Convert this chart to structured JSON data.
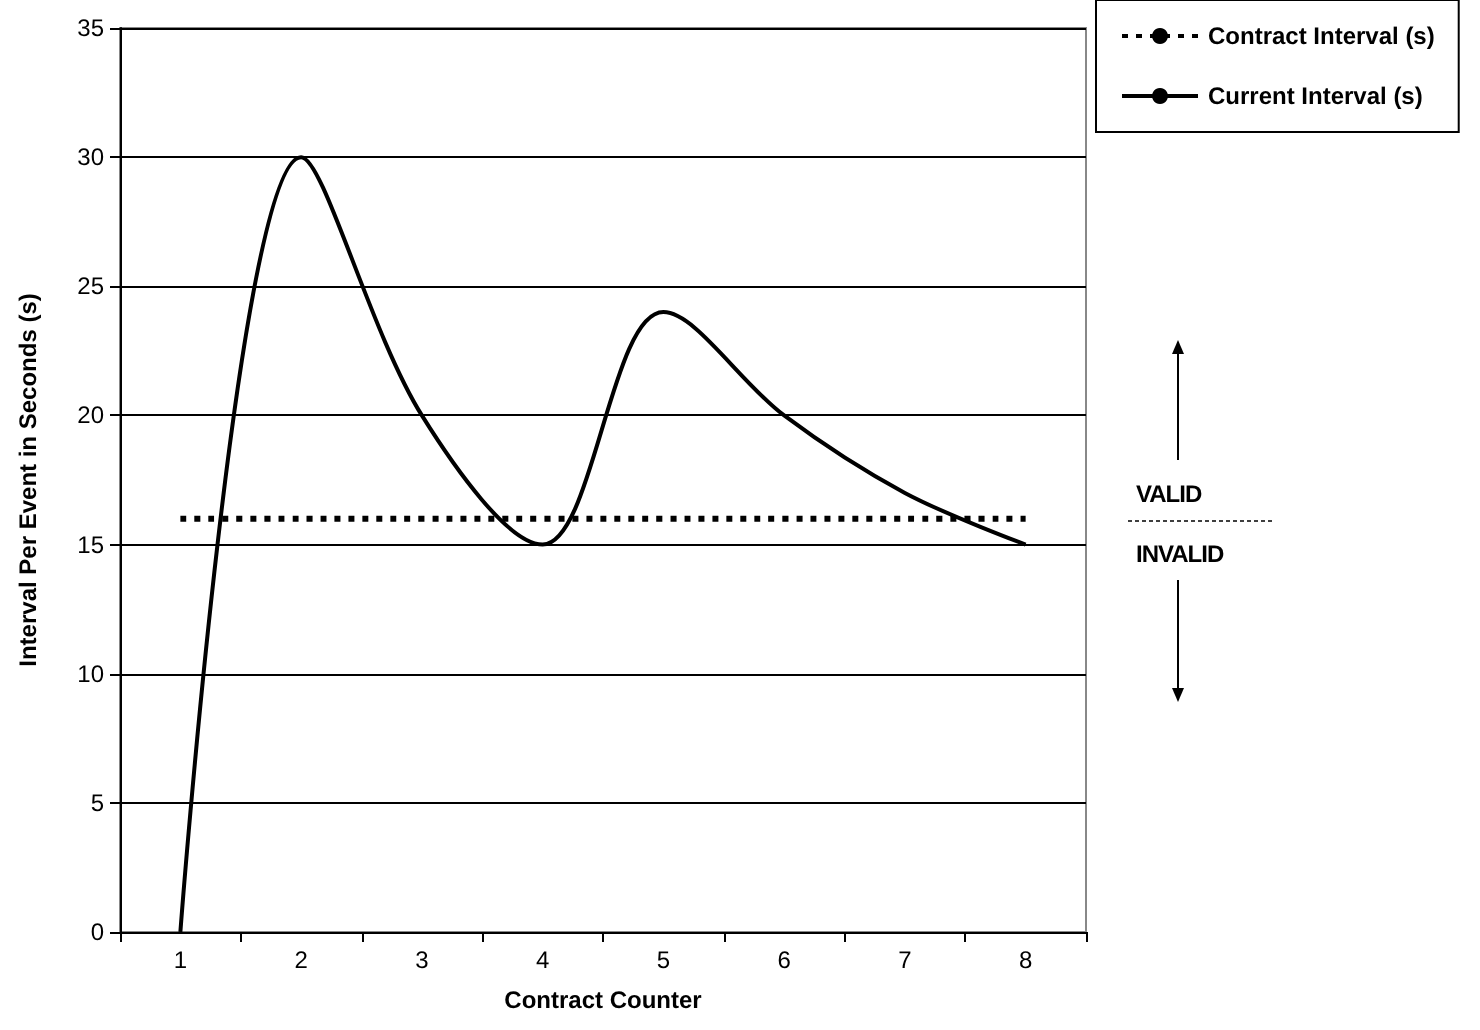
{
  "chart_data": {
    "type": "line",
    "xlabel": "Contract Counter",
    "ylabel": "Interval Per Event in Seconds (s)",
    "categories": [
      "1",
      "2",
      "3",
      "4",
      "5",
      "6",
      "7",
      "8"
    ],
    "series": [
      {
        "name": "Contract Interval (s)",
        "color": "#000000",
        "line_style": "dotted",
        "values": [
          16,
          16,
          16,
          16,
          16,
          16,
          16,
          16
        ]
      },
      {
        "name": "Current Interval (s)",
        "color": "#000000",
        "line_style": "solid",
        "values": [
          0,
          30,
          20,
          15,
          24,
          20,
          17,
          15
        ]
      }
    ],
    "ylim": [
      0,
      35
    ],
    "yticks": [
      0,
      5,
      10,
      15,
      20,
      25,
      30,
      35
    ],
    "grid": "y",
    "legend": "top right",
    "marker": "none",
    "annotations": [
      "VALID",
      "INVALID"
    ]
  }
}
